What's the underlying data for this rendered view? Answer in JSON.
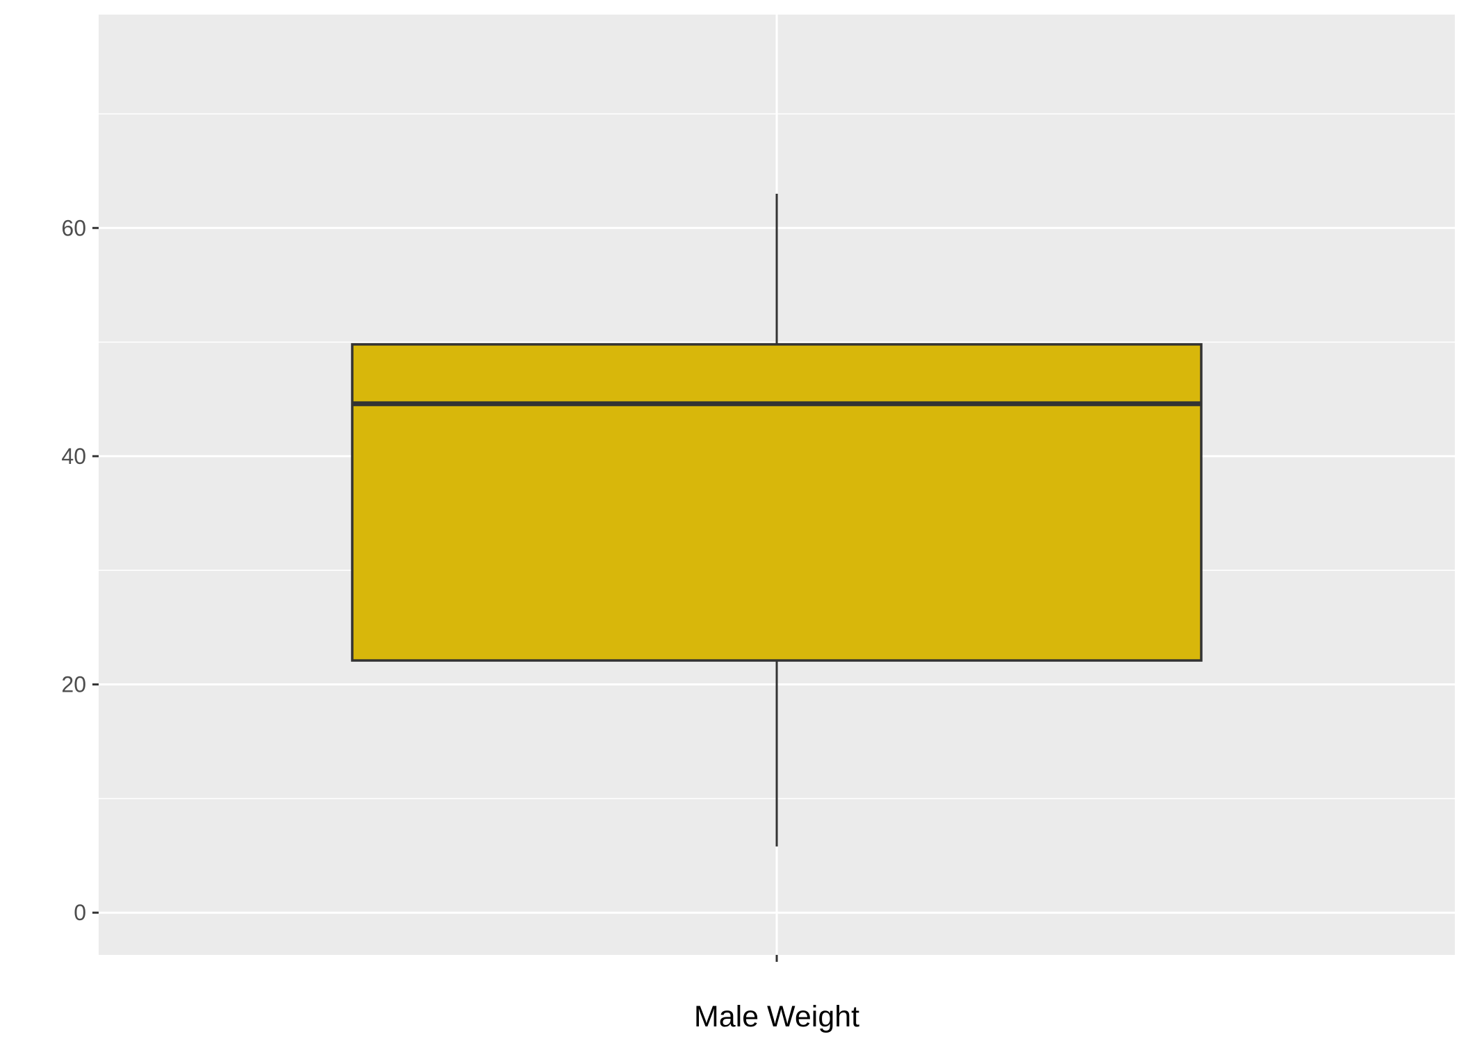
{
  "chart_data": {
    "type": "boxplot",
    "title": "",
    "xlabel": "Male Weight",
    "ylabel": "",
    "ylim": [
      -3.7,
      78.7
    ],
    "y_ticks": [
      0,
      20,
      40,
      60
    ],
    "y_tick_labels": [
      "0",
      "20",
      "40",
      "60"
    ],
    "y_minor": [
      10,
      30,
      50,
      70
    ],
    "grid": true,
    "legend": "none",
    "box": {
      "whisker_low": 5.8,
      "q1": 22.1,
      "median": 44.6,
      "q3": 49.8,
      "whisker_high": 63
    },
    "colors": {
      "panel": "#ebebeb",
      "grid": "#ffffff",
      "box_fill": "#d8b70b",
      "box_stroke": "#333333",
      "tick": "#333333"
    }
  }
}
